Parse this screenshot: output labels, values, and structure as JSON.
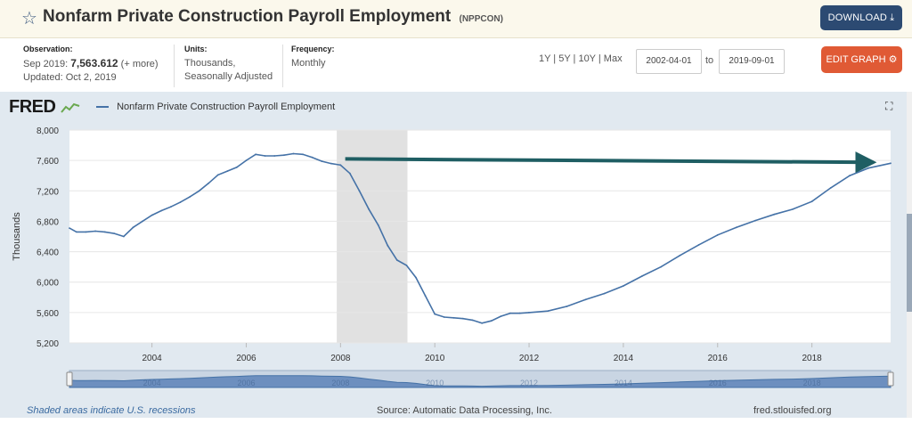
{
  "header": {
    "title": "Nonfarm Private Construction Payroll Employment",
    "code": "(NPPCON)",
    "download_label": "DOWNLOAD"
  },
  "meta": {
    "observation_label": "Observation:",
    "observation_period": "Sep 2019:",
    "observation_value": "7,563.612",
    "observation_more": "(+ more)",
    "updated": "Updated: Oct 2, 2019",
    "units_label": "Units:",
    "units_line1": "Thousands,",
    "units_line2": "Seasonally Adjusted",
    "frequency_label": "Frequency:",
    "frequency_value": "Monthly"
  },
  "controls": {
    "ranges": "1Y | 5Y | 10Y | Max",
    "start_date": "2002-04-01",
    "to_label": "to",
    "end_date": "2019-09-01",
    "edit_label": "EDIT GRAPH"
  },
  "logo": "FRED",
  "footer": {
    "recession_note": "Shaded areas indicate U.S. recessions",
    "source": "Source: Automatic Data Processing, Inc.",
    "site": "fred.stlouisfed.org"
  },
  "colors": {
    "series": "#4572a7",
    "recession": "#e1e1e1",
    "arrow": "#1f5e63",
    "download_btn": "#2c4a72",
    "edit_btn": "#e05a35"
  },
  "chart_data": {
    "type": "line",
    "ylabel": "Thousands",
    "ylim": [
      5200,
      8000
    ],
    "yticks": [
      5200,
      5600,
      6000,
      6400,
      6800,
      7200,
      7600,
      8000
    ],
    "ytick_labels": [
      "5,200",
      "5,600",
      "6,000",
      "6,400",
      "6,800",
      "7,200",
      "7,600",
      "8,000"
    ],
    "xlim": [
      2002.25,
      2019.67
    ],
    "xticks": [
      2004,
      2006,
      2008,
      2010,
      2012,
      2014,
      2016,
      2018
    ],
    "recession": [
      [
        2007.92,
        2009.42
      ]
    ],
    "navigator_labels": [
      "2004",
      "2006",
      "2008",
      "2010",
      "2012",
      "2014",
      "2016",
      "2018"
    ],
    "annotation": {
      "type": "arrow",
      "x": [
        2008.1,
        2019.3
      ],
      "y": [
        7620,
        7575
      ]
    },
    "series": [
      {
        "name": "Nonfarm Private Construction Payroll Employment",
        "x": [
          2002.25,
          2002.4,
          2002.6,
          2002.8,
          2003.0,
          2003.2,
          2003.4,
          2003.6,
          2003.8,
          2004.0,
          2004.2,
          2004.4,
          2004.6,
          2004.8,
          2005.0,
          2005.2,
          2005.4,
          2005.6,
          2005.8,
          2006.0,
          2006.2,
          2006.4,
          2006.6,
          2006.8,
          2007.0,
          2007.2,
          2007.4,
          2007.6,
          2007.8,
          2008.0,
          2008.2,
          2008.4,
          2008.6,
          2008.8,
          2009.0,
          2009.2,
          2009.4,
          2009.6,
          2009.8,
          2010.0,
          2010.2,
          2010.4,
          2010.6,
          2010.8,
          2011.0,
          2011.2,
          2011.4,
          2011.6,
          2011.8,
          2012.0,
          2012.4,
          2012.8,
          2013.2,
          2013.6,
          2014.0,
          2014.4,
          2014.8,
          2015.2,
          2015.6,
          2016.0,
          2016.4,
          2016.8,
          2017.2,
          2017.6,
          2018.0,
          2018.4,
          2018.8,
          2019.2,
          2019.67
        ],
        "y": [
          6710,
          6660,
          6660,
          6670,
          6660,
          6640,
          6600,
          6720,
          6800,
          6880,
          6940,
          6990,
          7050,
          7120,
          7200,
          7300,
          7410,
          7460,
          7510,
          7600,
          7680,
          7660,
          7660,
          7670,
          7690,
          7680,
          7640,
          7590,
          7560,
          7540,
          7430,
          7200,
          6960,
          6750,
          6480,
          6290,
          6220,
          6060,
          5820,
          5580,
          5540,
          5530,
          5520,
          5500,
          5460,
          5490,
          5550,
          5590,
          5590,
          5600,
          5620,
          5680,
          5770,
          5850,
          5950,
          6080,
          6200,
          6350,
          6490,
          6620,
          6720,
          6810,
          6890,
          6960,
          7060,
          7240,
          7400,
          7500,
          7563
        ]
      }
    ]
  }
}
